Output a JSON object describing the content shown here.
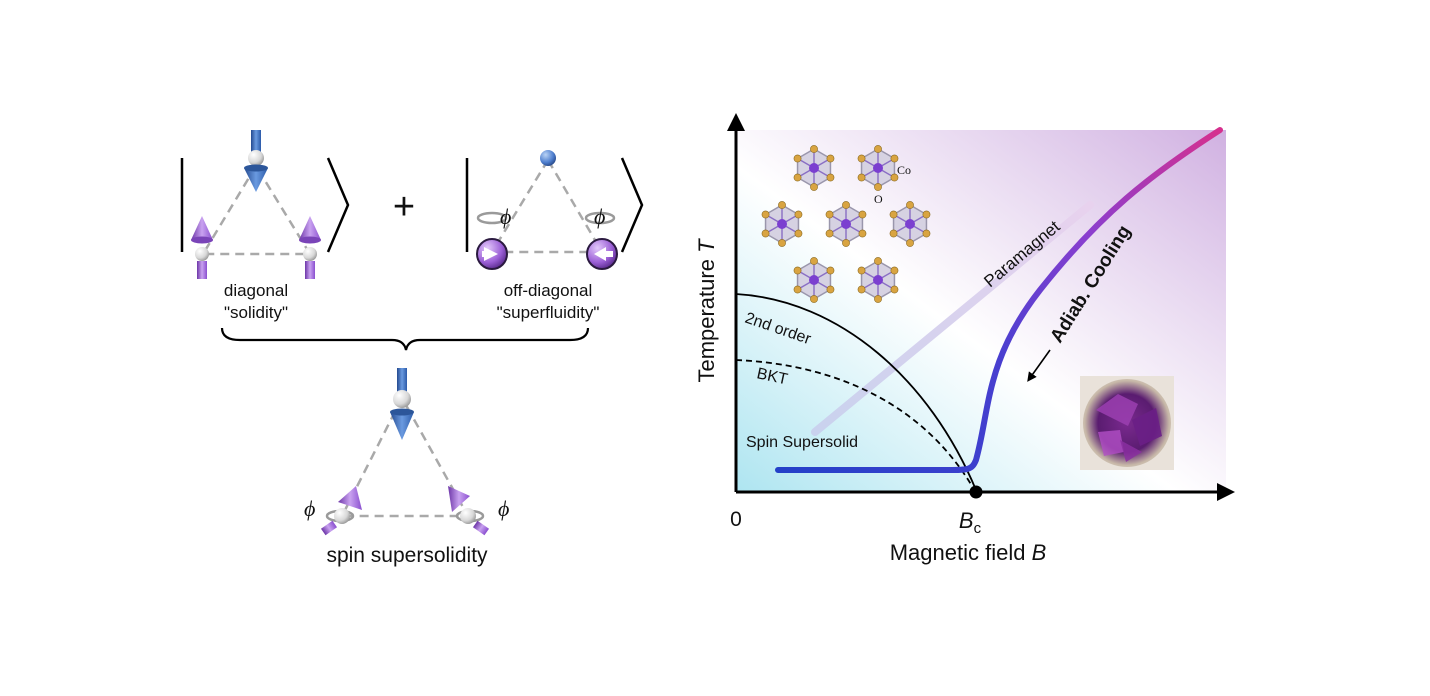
{
  "left_panel": {
    "plus_sign": "+",
    "diagonal_label": "diagonal",
    "diagonal_sub": "\"solidity\"",
    "offdiag_label": "off-diagonal",
    "offdiag_sub": "\"superfluidity\"",
    "phase_symbol": "ϕ",
    "bottom_label": "spin supersolidity"
  },
  "phase_diagram": {
    "y_axis_label": "Temperature",
    "y_axis_var": "T",
    "x_axis_label": "Magnetic field",
    "x_axis_var": "B",
    "origin_label": "0",
    "critical_label": "B",
    "critical_sub": "c",
    "second_order_label": "2nd order",
    "bkt_label": "BKT",
    "supersolid_label": "Spin Supersolid",
    "paramagnet_label": "Paramagnet",
    "cooling_label": "Adiab. Cooling",
    "co_label": "Co",
    "o_label": "O"
  },
  "colors": {
    "spin_blue": "#3a6fc4",
    "spin_purple": "#9b5fd6",
    "curve_start": "#2340c8",
    "curve_mid": "#8a3fcf",
    "curve_end": "#d6308e",
    "paramagnet_line": "#d9c2e8"
  }
}
